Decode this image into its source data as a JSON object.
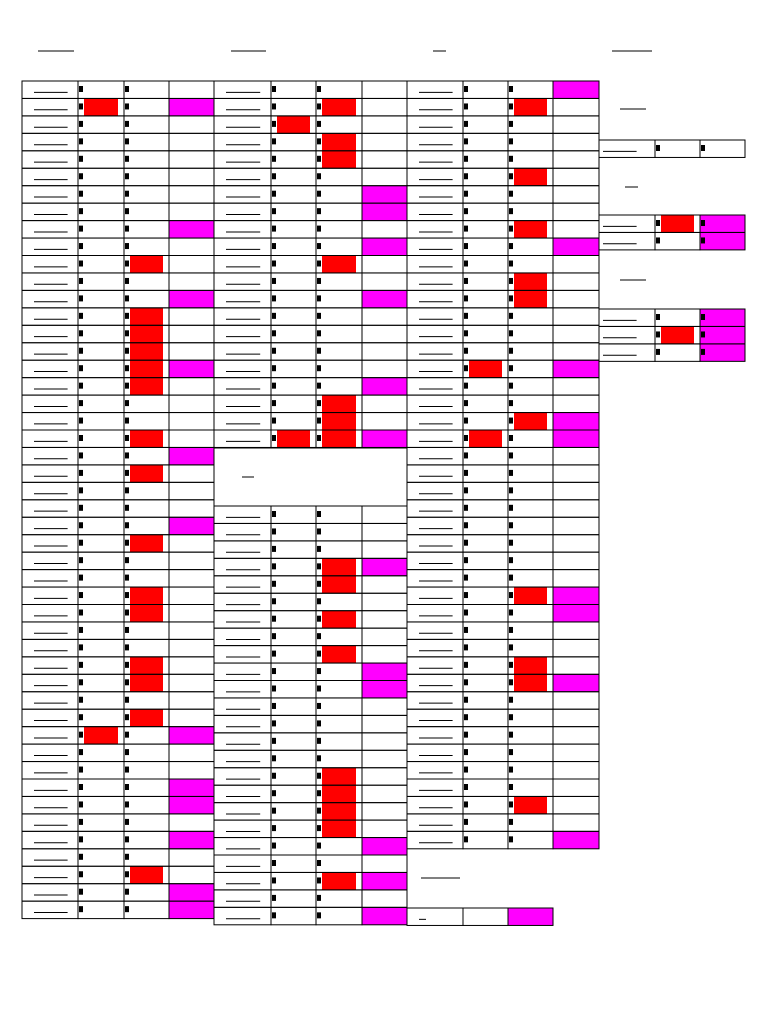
{
  "colors": {
    "red": "#ff0000",
    "magenta": "#ff00ff"
  },
  "blocks": [
    {
      "rows": 48,
      "columns": 4,
      "red": [
        [
          1,
          1
        ],
        [
          10,
          2
        ],
        [
          13,
          2
        ],
        [
          14,
          2
        ],
        [
          15,
          2
        ],
        [
          16,
          2
        ],
        [
          17,
          2
        ],
        [
          20,
          2
        ],
        [
          22,
          2
        ],
        [
          26,
          2
        ],
        [
          29,
          2
        ],
        [
          30,
          2
        ],
        [
          33,
          2
        ],
        [
          34,
          2
        ],
        [
          36,
          2
        ],
        [
          37,
          1
        ],
        [
          45,
          2
        ]
      ],
      "magenta": [
        [
          1,
          3
        ],
        [
          8,
          3
        ],
        [
          12,
          3
        ],
        [
          16,
          3
        ],
        [
          21,
          3
        ],
        [
          25,
          3
        ],
        [
          37,
          3
        ],
        [
          40,
          3
        ],
        [
          41,
          3
        ],
        [
          43,
          3
        ],
        [
          46,
          3
        ],
        [
          47,
          3
        ]
      ]
    },
    {
      "rows": 21,
      "columns": 4,
      "red": [
        [
          1,
          2
        ],
        [
          2,
          1
        ],
        [
          3,
          2
        ],
        [
          4,
          2
        ],
        [
          10,
          2
        ],
        [
          18,
          2
        ],
        [
          19,
          2
        ],
        [
          20,
          1
        ],
        [
          20,
          2
        ]
      ],
      "magenta": [
        [
          6,
          3
        ],
        [
          7,
          3
        ],
        [
          9,
          3
        ],
        [
          12,
          3
        ],
        [
          17,
          3
        ],
        [
          20,
          3
        ]
      ]
    },
    {
      "rows": 24,
      "columns": 4,
      "red": [
        [
          3,
          2
        ],
        [
          4,
          2
        ],
        [
          6,
          2
        ],
        [
          8,
          2
        ],
        [
          15,
          2
        ],
        [
          16,
          2
        ],
        [
          17,
          2
        ],
        [
          18,
          2
        ],
        [
          21,
          2
        ]
      ],
      "magenta": [
        [
          3,
          3
        ],
        [
          9,
          3
        ],
        [
          10,
          3
        ],
        [
          19,
          3
        ],
        [
          21,
          3
        ],
        [
          23,
          3
        ]
      ]
    },
    {
      "rows": 44,
      "columns": 4,
      "red": [
        [
          1,
          2
        ],
        [
          5,
          2
        ],
        [
          8,
          2
        ],
        [
          11,
          2
        ],
        [
          12,
          2
        ],
        [
          16,
          1
        ],
        [
          19,
          2
        ],
        [
          20,
          1
        ],
        [
          29,
          2
        ],
        [
          33,
          2
        ],
        [
          34,
          2
        ],
        [
          41,
          2
        ]
      ],
      "magenta": [
        [
          0,
          3
        ],
        [
          9,
          3
        ],
        [
          16,
          3
        ],
        [
          19,
          3
        ],
        [
          20,
          3
        ],
        [
          29,
          3
        ],
        [
          30,
          3
        ],
        [
          34,
          3
        ],
        [
          43,
          3
        ]
      ]
    },
    {
      "rows": 1,
      "columns": 3,
      "red": [],
      "magenta": [
        [
          0,
          2
        ]
      ]
    },
    {
      "rows": 1,
      "columns": 3,
      "red": [],
      "magenta": []
    },
    {
      "rows": 2,
      "columns": 3,
      "red": [
        [
          0,
          1
        ]
      ],
      "magenta": [
        [
          0,
          2
        ],
        [
          1,
          2
        ]
      ]
    },
    {
      "rows": 3,
      "columns": 3,
      "red": [
        [
          1,
          1
        ]
      ],
      "magenta": [
        [
          0,
          2
        ],
        [
          1,
          2
        ],
        [
          2,
          2
        ]
      ]
    }
  ]
}
